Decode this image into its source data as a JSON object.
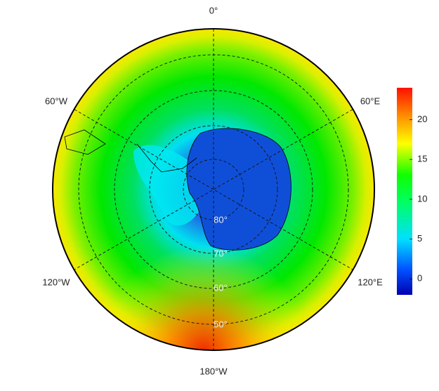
{
  "map": {
    "longitude_labels": [
      "0°",
      "60°E",
      "120°E",
      "180°W",
      "120°W",
      "60°W"
    ],
    "latitude_labels": [
      "80°",
      "70°",
      "60°",
      "50°"
    ]
  },
  "colorbar": {
    "lim": [
      -2,
      24
    ],
    "ticks": [
      0,
      5,
      10,
      15,
      20
    ]
  }
}
